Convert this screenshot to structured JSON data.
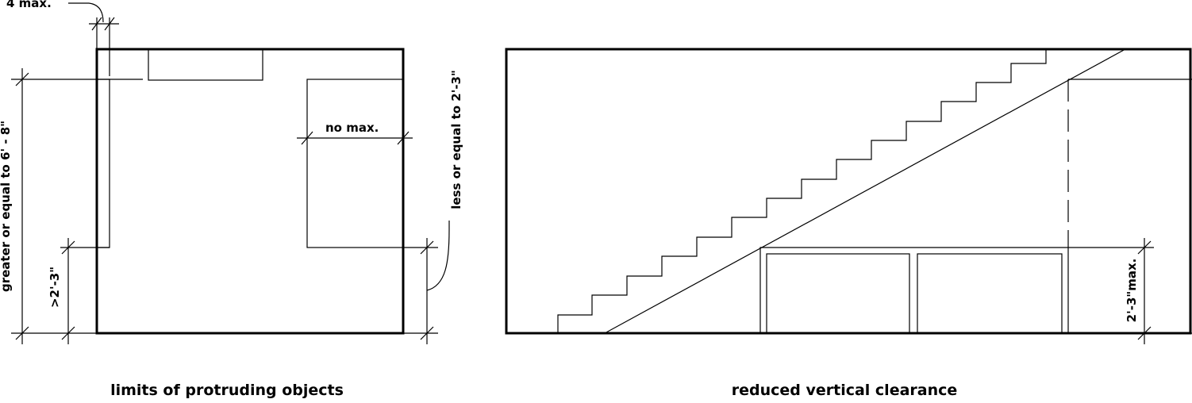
{
  "left_diagram": {
    "caption": "limits of protruding objects",
    "dim_top": "4 max.",
    "dim_height": "greater or equal to 6' - 8\"",
    "dim_low": ">2'-3\"",
    "dim_right": "less or equal to 2'-3\"",
    "dim_no_max": "no max."
  },
  "right_diagram": {
    "caption": "reduced vertical clearance",
    "dim_max": "2'-3\"max."
  }
}
